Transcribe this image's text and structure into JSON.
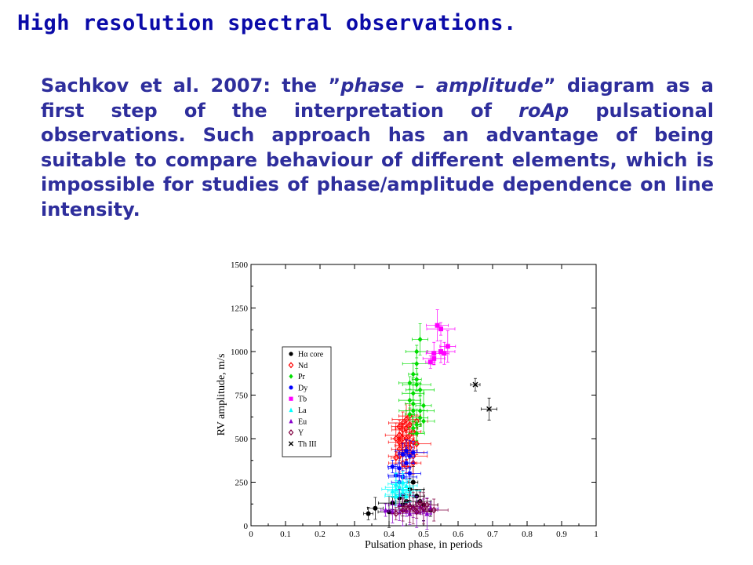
{
  "slide": {
    "title": "High resolution spectral observations.",
    "paragraph": {
      "lead": "Sachkov et al. 2007: the ",
      "quote_open": "”",
      "emph1": "phase – amplitude",
      "quote_close": "”",
      "mid1": " diagram as a first step of the interpretation of ",
      "emph2": "roAp",
      "tail": " pulsational observations. Such approach has an advantage of being suitable to compare behaviour of different elements, which is impossible for studies of phase/amplitude dependence on line intensity."
    }
  },
  "colors": {
    "title": "#0a0aa8",
    "text": "#2e2e9c",
    "Hcore": "#000000",
    "Nd": "#ff0000",
    "Pr": "#00dd00",
    "Dy": "#0000ff",
    "Tb": "#ff00ff",
    "La": "#00ffff",
    "Eu": "#8800cc",
    "Y": "#800040",
    "ThIII": "#000000"
  },
  "chart_data": {
    "type": "scatter",
    "xlabel": "Pulsation phase, in periods",
    "ylabel": "RV amplitude, m/s",
    "xlim": [
      0,
      1
    ],
    "ylim": [
      0,
      1500
    ],
    "xticks": [
      "0",
      "0.1",
      "0.2",
      "0.3",
      "0.4",
      "0.5",
      "0.6",
      "0.7",
      "0.8",
      "0.9",
      "1"
    ],
    "yticks": [
      "0",
      "250",
      "500",
      "750",
      "1000",
      "1250",
      "1500"
    ],
    "legend_position": "upper-left",
    "grid": false,
    "series": [
      {
        "name": "Hα core",
        "marker": "circle",
        "color": "#000000",
        "points": [
          [
            0.34,
            70
          ],
          [
            0.36,
            100
          ],
          [
            0.4,
            80
          ],
          [
            0.41,
            130
          ],
          [
            0.43,
            160
          ],
          [
            0.44,
            180
          ],
          [
            0.45,
            140
          ],
          [
            0.46,
            210
          ],
          [
            0.47,
            250
          ],
          [
            0.48,
            170
          ],
          [
            0.49,
            140
          ],
          [
            0.5,
            120
          ],
          [
            0.52,
            90
          ],
          [
            0.44,
            120
          ]
        ]
      },
      {
        "name": "Nd",
        "marker": "open-diamond",
        "color": "#ff0000",
        "points": [
          [
            0.42,
            390
          ],
          [
            0.43,
            440
          ],
          [
            0.43,
            480
          ],
          [
            0.43,
            520
          ],
          [
            0.44,
            410
          ],
          [
            0.44,
            460
          ],
          [
            0.44,
            550
          ],
          [
            0.44,
            590
          ],
          [
            0.45,
            430
          ],
          [
            0.45,
            500
          ],
          [
            0.45,
            560
          ],
          [
            0.45,
            610
          ],
          [
            0.46,
            450
          ],
          [
            0.46,
            520
          ],
          [
            0.46,
            580
          ],
          [
            0.47,
            400
          ],
          [
            0.47,
            480
          ],
          [
            0.47,
            540
          ],
          [
            0.48,
            600
          ],
          [
            0.48,
            470
          ],
          [
            0.42,
            500
          ],
          [
            0.43,
            570
          ],
          [
            0.46,
            630
          ],
          [
            0.44,
            360
          ],
          [
            0.45,
            340
          ],
          [
            0.47,
            360
          ],
          [
            0.43,
            400
          ],
          [
            0.46,
            420
          ],
          [
            0.44,
            500
          ],
          [
            0.45,
            470
          ]
        ]
      },
      {
        "name": "Pr",
        "marker": "diamond",
        "color": "#00dd00",
        "points": [
          [
            0.46,
            640
          ],
          [
            0.47,
            700
          ],
          [
            0.47,
            760
          ],
          [
            0.48,
            810
          ],
          [
            0.47,
            870
          ],
          [
            0.49,
            1070
          ],
          [
            0.48,
            1000
          ],
          [
            0.48,
            930
          ],
          [
            0.48,
            580
          ],
          [
            0.49,
            620
          ],
          [
            0.5,
            600
          ],
          [
            0.49,
            660
          ],
          [
            0.47,
            560
          ],
          [
            0.48,
            530
          ],
          [
            0.46,
            720
          ],
          [
            0.49,
            780
          ],
          [
            0.48,
            840
          ],
          [
            0.5,
            690
          ],
          [
            0.46,
            820
          ],
          [
            0.47,
            660
          ]
        ]
      },
      {
        "name": "Dy",
        "marker": "star",
        "color": "#0000ff",
        "points": [
          [
            0.41,
            340
          ],
          [
            0.42,
            290
          ],
          [
            0.43,
            330
          ],
          [
            0.44,
            280
          ],
          [
            0.44,
            410
          ],
          [
            0.45,
            360
          ],
          [
            0.46,
            300
          ],
          [
            0.47,
            420
          ],
          [
            0.46,
            400
          ],
          [
            0.43,
            250
          ],
          [
            0.45,
            430
          ]
        ]
      },
      {
        "name": "Tb",
        "marker": "square",
        "color": "#ff00ff",
        "points": [
          [
            0.52,
            940
          ],
          [
            0.53,
            990
          ],
          [
            0.54,
            1150
          ],
          [
            0.55,
            1130
          ],
          [
            0.56,
            990
          ],
          [
            0.57,
            1030
          ],
          [
            0.53,
            960
          ],
          [
            0.55,
            1000
          ]
        ]
      },
      {
        "name": "La",
        "marker": "triangle",
        "color": "#00ffff",
        "points": [
          [
            0.41,
            200
          ],
          [
            0.42,
            240
          ],
          [
            0.42,
            170
          ],
          [
            0.43,
            220
          ],
          [
            0.44,
            250
          ],
          [
            0.44,
            190
          ],
          [
            0.45,
            230
          ],
          [
            0.43,
            180
          ],
          [
            0.44,
            210
          ],
          [
            0.45,
            170
          ],
          [
            0.46,
            200
          ],
          [
            0.42,
            210
          ]
        ]
      },
      {
        "name": "Eu",
        "marker": "triangle",
        "color": "#8800cc",
        "points": [
          [
            0.39,
            90
          ],
          [
            0.41,
            80
          ],
          [
            0.43,
            120
          ],
          [
            0.45,
            90
          ],
          [
            0.47,
            110
          ],
          [
            0.48,
            80
          ],
          [
            0.49,
            110
          ],
          [
            0.5,
            90
          ],
          [
            0.51,
            70
          ],
          [
            0.52,
            100
          ],
          [
            0.46,
            70
          ],
          [
            0.44,
            90
          ]
        ]
      },
      {
        "name": "Y",
        "marker": "open-diamond",
        "color": "#800040",
        "points": [
          [
            0.42,
            70
          ],
          [
            0.44,
            90
          ],
          [
            0.46,
            110
          ],
          [
            0.48,
            80
          ],
          [
            0.49,
            130
          ],
          [
            0.5,
            100
          ],
          [
            0.51,
            120
          ],
          [
            0.53,
            90
          ],
          [
            0.47,
            100
          ],
          [
            0.45,
            110
          ]
        ]
      },
      {
        "name": "Th III",
        "marker": "x",
        "color": "#000000",
        "points": [
          [
            0.65,
            810
          ],
          [
            0.69,
            670
          ]
        ]
      }
    ]
  }
}
